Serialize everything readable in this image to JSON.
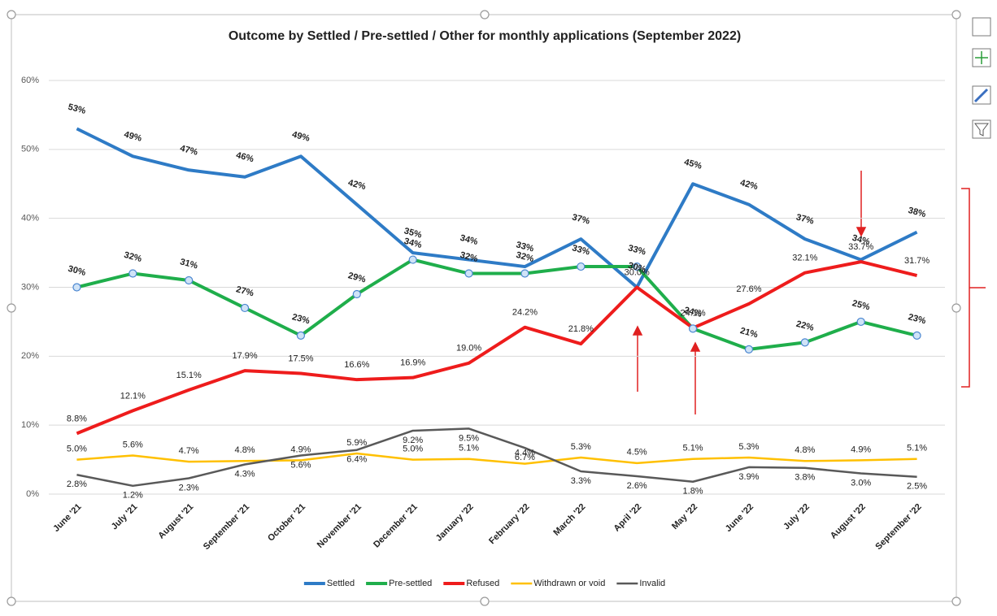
{
  "chart_data": {
    "type": "line",
    "title": "Outcome by Settled / Pre-settled / Other  for monthly applications (September  2022)",
    "categories": [
      "June '21",
      "July '21",
      "August '21",
      "September '21",
      "October '21",
      "November '21",
      "December '21",
      "January '22",
      "February '22",
      "March '22",
      "April '22",
      "May '22",
      "June '22",
      "July '22",
      "August '22",
      "September '22"
    ],
    "ylim": [
      0,
      60
    ],
    "yticks": [
      {
        "value": 0,
        "label": "0%"
      },
      {
        "value": 10,
        "label": "10%"
      },
      {
        "value": 20,
        "label": "20%"
      },
      {
        "value": 30,
        "label": "30%"
      },
      {
        "value": 40,
        "label": "40%"
      },
      {
        "value": 50,
        "label": "50%"
      },
      {
        "value": 60,
        "label": "60%"
      }
    ],
    "grid": true,
    "legend": "bottom",
    "series": [
      {
        "name": "Settled",
        "color": "#2e7bc6",
        "values": [
          53,
          49,
          47,
          46,
          49,
          42,
          35,
          34,
          33,
          37,
          30,
          45,
          42,
          37,
          34,
          38
        ],
        "value_labels": [
          "53%",
          "49%",
          "47%",
          "46%",
          "49%",
          "42%",
          "35%",
          "34%",
          "33%",
          "37%",
          "30%",
          "45%",
          "42%",
          "37%",
          "34%",
          "38%"
        ]
      },
      {
        "name": "Pre-settled",
        "color": "#1fae4b",
        "values": [
          30,
          32,
          31,
          27,
          23,
          29,
          34,
          32,
          32,
          33,
          33,
          24,
          21,
          22,
          25,
          23
        ],
        "value_labels": [
          "30%",
          "32%",
          "31%",
          "27%",
          "23%",
          "29%",
          "34%",
          "32%",
          "32%",
          "33%",
          "33%",
          "24%",
          "21%",
          "22%",
          "25%",
          "23%"
        ]
      },
      {
        "name": "Refused",
        "color": "#ee1c1c",
        "values": [
          8.8,
          12.1,
          15.1,
          17.9,
          17.5,
          16.6,
          16.9,
          19.0,
          24.2,
          21.8,
          30.0,
          24.1,
          27.6,
          32.1,
          33.7,
          31.7
        ],
        "value_labels": [
          "8.8%",
          "12.1%",
          "15.1%",
          "17.9%",
          "17.5%",
          "16.6%",
          "16.9%",
          "19.0%",
          "24.2%",
          "21.8%",
          "30.0%",
          "24.1%",
          "27.6%",
          "32.1%",
          "33.7%",
          "31.7%"
        ]
      },
      {
        "name": "Withdrawn or void",
        "color": "#ffc000",
        "values": [
          5.0,
          5.6,
          4.7,
          4.8,
          4.9,
          5.9,
          5.0,
          5.1,
          4.4,
          5.3,
          4.5,
          5.1,
          5.3,
          4.8,
          4.9,
          5.1
        ],
        "value_labels": [
          "5.0%",
          "5.6%",
          "4.7%",
          "4.8%",
          "4.9%",
          "5.9%",
          "5.0%",
          "5.1%",
          "4.4%",
          "5.3%",
          "4.5%",
          "5.1%",
          "5.3%",
          "4.8%",
          "4.9%",
          "5.1%"
        ]
      },
      {
        "name": "Invalid",
        "color": "#595959",
        "values": [
          2.8,
          1.2,
          2.3,
          4.3,
          5.6,
          6.4,
          9.2,
          9.5,
          6.7,
          3.3,
          2.6,
          1.8,
          3.9,
          3.8,
          3.0,
          2.5
        ],
        "value_labels": [
          "2.8%",
          "1.2%",
          "2.3%",
          "4.3%",
          "5.6%",
          "6.4%",
          "9.2%",
          "9.5%",
          "6.7%",
          "3.3%",
          "2.6%",
          "1.8%",
          "3.9%",
          "3.8%",
          "3.0%",
          "2.5%"
        ]
      }
    ]
  }
}
